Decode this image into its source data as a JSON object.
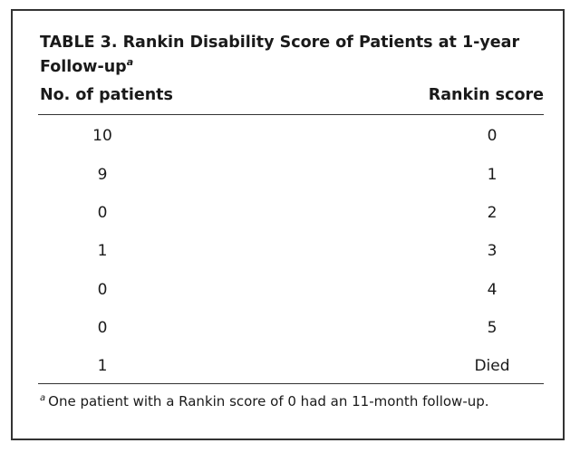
{
  "table": {
    "caption": "TABLE 3. Rankin Disability Score of Patients at 1-year Follow-up",
    "caption_marker": "a",
    "headers": {
      "patients": "No. of patients",
      "score": "Rankin score"
    },
    "rows": [
      {
        "patients": "10",
        "score": "0"
      },
      {
        "patients": "9",
        "score": "1"
      },
      {
        "patients": "0",
        "score": "2"
      },
      {
        "patients": "1",
        "score": "3"
      },
      {
        "patients": "0",
        "score": "4"
      },
      {
        "patients": "0",
        "score": "5"
      },
      {
        "patients": "1",
        "score": "Died"
      }
    ],
    "footnote": {
      "marker": "a",
      "text": "One patient with a Rankin score of 0 had an 11-month follow-up."
    }
  }
}
